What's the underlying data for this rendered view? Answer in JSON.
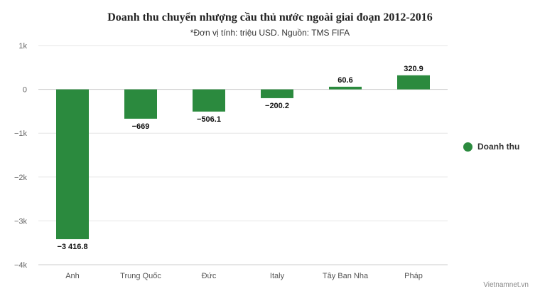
{
  "chart_data": {
    "type": "bar",
    "title": "Doanh thu chuyển nhượng cầu thủ nước ngoài giai đoạn 2012-2016",
    "subtitle": "*Đơn vị tính: triệu USD. Nguồn: TMS FIFA",
    "categories": [
      "Anh",
      "Trung Quốc",
      "Đức",
      "Italy",
      "Tây Ban Nha",
      "Pháp"
    ],
    "series": [
      {
        "name": "Doanh thu",
        "values": [
          -3416.8,
          -669,
          -506.1,
          -200.2,
          60.6,
          320.9
        ],
        "data_labels": [
          "−3 416.8",
          "−669",
          "−506.1",
          "−200.2",
          "60.6",
          "320.9"
        ],
        "color": "#2b8a3e"
      }
    ],
    "ylim": [
      -4000,
      1000
    ],
    "yticks": [
      1000,
      0,
      -1000,
      -2000,
      -3000,
      -4000
    ],
    "ytick_labels": [
      "1k",
      "0",
      "−1k",
      "−2k",
      "−3k",
      "−4k"
    ],
    "grid": true,
    "legend": "right",
    "credit": "Vietnamnet.vn"
  }
}
